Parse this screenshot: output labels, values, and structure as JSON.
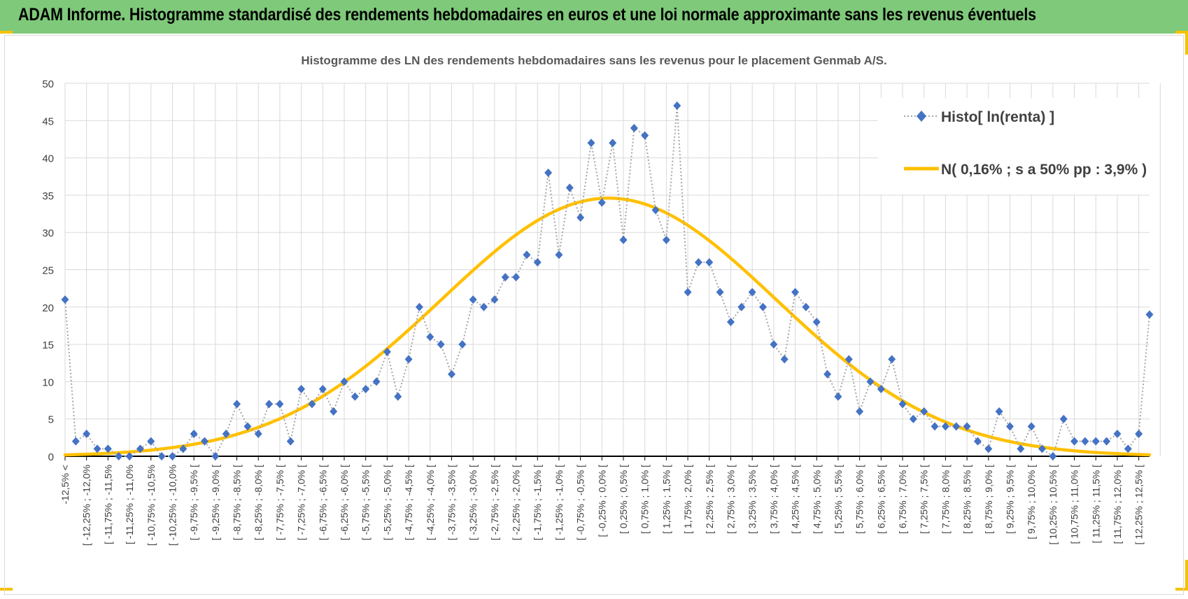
{
  "header": {
    "title": "ADAM Informe. Histogramme standardisé des rendements hebdomadaires en euros et une loi normale approximante sans les revenus éventuels"
  },
  "colors": {
    "banner": "#7fc97a",
    "accent_corners": "#f5c200",
    "histo_marker": "#4472c4",
    "histo_line": "#a6a6a6",
    "normal_curve": "#ffc000"
  },
  "chart_data": {
    "type": "line",
    "title": "Histogramme des LN des rendements hebdomadaires sans les revenus pour le placement Genmab A/S.",
    "xlabel": "",
    "ylabel": "",
    "ylim": [
      0,
      50
    ],
    "yticks": [
      0,
      5,
      10,
      15,
      20,
      25,
      30,
      35,
      40,
      45,
      50
    ],
    "grid": true,
    "legend_position": "top-right",
    "categories": [
      "-12,5% <",
      "[ -12,25% ; -12,0%",
      "[ -11,75% ; -11,5%",
      "[ -11,25% ; -11,0%",
      "[ -10,75% ; -10,5%",
      "[ -10,25% ; -10,0%",
      "[ -9,75% ; -9,5% [",
      "[ -9,25% ; -9,0% [",
      "[ -8,75% ; -8,5% [",
      "[ -8,25% ; -8,0% [",
      "[ -7,75% ; -7,5% [",
      "[ -7,25% ; -7,0% [",
      "[ -6,75% ; -6,5% [",
      "[ -6,25% ; -6,0% [",
      "[ -5,75% ; -5,5% [",
      "[ -5,25% ; -5,0% [",
      "[ -4,75% ; -4,5% [",
      "[ -4,25% ; -4,0% [",
      "[ -3,75% ; -3,5% [",
      "[ -3,25% ; -3,0% [",
      "[ -2,75% ; -2,5% [",
      "[ -2,25% ; -2,0% [",
      "[ -1,75% ; -1,5% [",
      "[ -1,25% ; -1,0% [",
      "[ -0,75% ; -0,5% [",
      "[ -0,25% ; 0,0% [",
      "[ 0,25% ; 0,5% [",
      "[ 0,75% ; 1,0% [",
      "[ 1,25% ; 1,5% [",
      "[ 1,75% ; 2,0% [",
      "[ 2,25% ; 2,5% [",
      "[ 2,75% ; 3,0% [",
      "[ 3,25% ; 3,5% [",
      "[ 3,75% ; 4,0% [",
      "[ 4,25% ; 4,5% [",
      "[ 4,75% ; 5,0% [",
      "[ 5,25% ; 5,5% [",
      "[ 5,75% ; 6,0% [",
      "[ 6,25% ; 6,5% [",
      "[ 6,75% ; 7,0% [",
      "[ 7,25% ; 7,5% [",
      "[ 7,75% ; 8,0% [",
      "[ 8,25% ; 8,5% [",
      "[ 8,75% ; 9,0% [",
      "[ 9,25% ; 9,5% [",
      "[ 9,75% ; 10,0% [",
      "[ 10,25% ; 10,5% [",
      "[ 10,75% ; 11,0% [",
      "[ 11,25% ; 11,5% [",
      "[ 11,75% ; 12,0% [",
      "[ 12,25% ; 12,5% ["
    ],
    "x_min": -12.5,
    "x_step": 0.25,
    "series": [
      {
        "name": "Histo[ ln(renta) ]",
        "style": "dotted-line-diamond-markers",
        "points": [
          [
            -12.5,
            21
          ],
          [
            -12.25,
            2
          ],
          [
            -12.0,
            3
          ],
          [
            -11.75,
            1
          ],
          [
            -11.5,
            1
          ],
          [
            -11.25,
            0
          ],
          [
            -11.0,
            0
          ],
          [
            -10.75,
            1
          ],
          [
            -10.5,
            2
          ],
          [
            -10.25,
            0
          ],
          [
            -10.0,
            0
          ],
          [
            -9.75,
            1
          ],
          [
            -9.5,
            3
          ],
          [
            -9.25,
            2
          ],
          [
            -9.0,
            0
          ],
          [
            -8.75,
            3
          ],
          [
            -8.5,
            7
          ],
          [
            -8.25,
            4
          ],
          [
            -8.0,
            3
          ],
          [
            -7.75,
            7
          ],
          [
            -7.5,
            7
          ],
          [
            -7.25,
            2
          ],
          [
            -7.0,
            9
          ],
          [
            -6.75,
            7
          ],
          [
            -6.5,
            9
          ],
          [
            -6.25,
            6
          ],
          [
            -6.0,
            10
          ],
          [
            -5.75,
            8
          ],
          [
            -5.5,
            9
          ],
          [
            -5.25,
            10
          ],
          [
            -5.0,
            14
          ],
          [
            -4.75,
            8
          ],
          [
            -4.5,
            13
          ],
          [
            -4.25,
            20
          ],
          [
            -4.0,
            16
          ],
          [
            -3.75,
            15
          ],
          [
            -3.5,
            11
          ],
          [
            -3.25,
            15
          ],
          [
            -3.0,
            21
          ],
          [
            -2.75,
            20
          ],
          [
            -2.5,
            21
          ],
          [
            -2.25,
            24
          ],
          [
            -2.0,
            24
          ],
          [
            -1.75,
            27
          ],
          [
            -1.5,
            26
          ],
          [
            -1.25,
            38
          ],
          [
            -1.0,
            27
          ],
          [
            -0.75,
            36
          ],
          [
            -0.5,
            32
          ],
          [
            -0.25,
            42
          ],
          [
            0.0,
            34
          ],
          [
            0.25,
            42
          ],
          [
            0.5,
            29
          ],
          [
            0.75,
            44
          ],
          [
            1.0,
            43
          ],
          [
            1.25,
            33
          ],
          [
            1.5,
            29
          ],
          [
            1.75,
            47
          ],
          [
            2.0,
            22
          ],
          [
            2.25,
            26
          ],
          [
            2.5,
            26
          ],
          [
            2.75,
            22
          ],
          [
            3.0,
            18
          ],
          [
            3.25,
            20
          ],
          [
            3.5,
            22
          ],
          [
            3.75,
            20
          ],
          [
            4.0,
            15
          ],
          [
            4.25,
            13
          ],
          [
            4.5,
            22
          ],
          [
            4.75,
            20
          ],
          [
            5.0,
            18
          ],
          [
            5.25,
            11
          ],
          [
            5.5,
            8
          ],
          [
            5.75,
            13
          ],
          [
            6.0,
            6
          ],
          [
            6.25,
            10
          ],
          [
            6.5,
            9
          ],
          [
            6.75,
            13
          ],
          [
            7.0,
            7
          ],
          [
            7.25,
            5
          ],
          [
            7.5,
            6
          ],
          [
            7.75,
            4
          ],
          [
            8.0,
            4
          ],
          [
            8.25,
            4
          ],
          [
            8.5,
            4
          ],
          [
            8.75,
            2
          ],
          [
            9.0,
            1
          ],
          [
            9.25,
            6
          ],
          [
            9.5,
            4
          ],
          [
            9.75,
            1
          ],
          [
            10.0,
            4
          ],
          [
            10.25,
            1
          ],
          [
            10.5,
            0
          ],
          [
            10.75,
            5
          ],
          [
            11.0,
            2
          ],
          [
            11.25,
            2
          ],
          [
            11.5,
            2
          ],
          [
            11.75,
            2
          ],
          [
            12.0,
            3
          ],
          [
            12.25,
            1
          ],
          [
            12.5,
            3
          ],
          [
            12.75,
            19
          ]
        ]
      },
      {
        "name": "N( 0,16% ; s a 50% pp : 3,9% )",
        "style": "smooth-line",
        "mean": 0.16,
        "sd": 3.9,
        "peak": 34.6
      }
    ]
  }
}
